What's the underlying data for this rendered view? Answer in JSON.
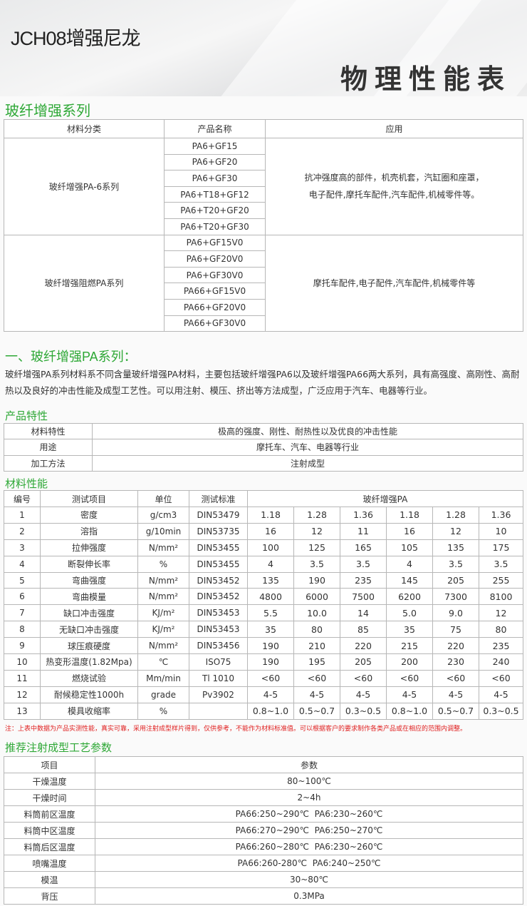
{
  "header": {
    "title": "JCH08增强尼龙",
    "banner_text": "物理性能表"
  },
  "series": {
    "heading": "玻纤增强系列",
    "columns": [
      "材料分类",
      "产品名称",
      "应用"
    ],
    "groups": [
      {
        "category": "玻纤增强PA-6系列",
        "products": [
          "PA6+GF15",
          "PA6+GF20",
          "PA6+GF30",
          "PA6+T18+GF12",
          "PA6+T20+GF20",
          "PA6+T20+GF30"
        ],
        "application_lines": [
          "抗冲强度高的部件，机壳机套，汽缸圈和座罩，",
          "电子配件,摩托车配件,汽车配件,机械零件等。"
        ]
      },
      {
        "category": "玻纤增强阻燃PA系列",
        "products": [
          "PA6+GF15V0",
          "PA6+GF20V0",
          "PA6+GF30V0",
          "PA66+GF15V0",
          "PA66+GF20V0",
          "PA66+GF30V0"
        ],
        "application_lines": [
          "摩托车配件,电子配件,汽车配件,机械零件等"
        ]
      }
    ]
  },
  "intro": {
    "heading": "一、玻纤增强PA系列：",
    "text": "玻纤增强PA系列材料系不同含量玻纤增强PA材料，主要包括玻纤增强PA6以及玻纤增强PA66两大系列，具有高强度、高刚性、高耐热以及良好的冲击性能及成型工艺性。可以用注射、模压、挤出等方法成型，广泛应用于汽车、电器等行业。"
  },
  "features": {
    "heading": "产品特性",
    "rows": [
      [
        "材料特性",
        "极高的强度、刚性、耐热性以及优良的冲击性能"
      ],
      [
        "用途",
        "摩托车、汽车、电器等行业"
      ],
      [
        "加工方法",
        "注射成型"
      ]
    ]
  },
  "properties": {
    "heading": "材料性能",
    "columns": [
      "编号",
      "测试项目",
      "单位",
      "测试标准",
      "玻纤增强PA"
    ],
    "rows": [
      [
        "1",
        "密度",
        "g/cm3",
        "DIN53479",
        "1.18",
        "1.28",
        "1.36",
        "1.18",
        "1.28",
        "1.36"
      ],
      [
        "2",
        "溶指",
        "g/10min",
        "DIN53735",
        "16",
        "12",
        "11",
        "16",
        "12",
        "10"
      ],
      [
        "3",
        "拉伸强度",
        "N/mm²",
        "DIN53455",
        "100",
        "125",
        "165",
        "105",
        "135",
        "175"
      ],
      [
        "4",
        "断裂伸长率",
        "%",
        "DIN53455",
        "4",
        "3.5",
        "3.5",
        "4",
        "3.5",
        "3.5"
      ],
      [
        "5",
        "弯曲强度",
        "N/mm²",
        "DIN53452",
        "135",
        "190",
        "235",
        "145",
        "205",
        "255"
      ],
      [
        "6",
        "弯曲模量",
        "N/mm²",
        "DIN53452",
        "4800",
        "6000",
        "7500",
        "6200",
        "7300",
        "8100"
      ],
      [
        "7",
        "缺口冲击强度",
        "KJ/m²",
        "DIN53453",
        "5.5",
        "10.0",
        "14",
        "5.0",
        "9.0",
        "12"
      ],
      [
        "8",
        "无缺口冲击强度",
        "KJ/m²",
        "DIN53453",
        "35",
        "80",
        "85",
        "35",
        "75",
        "80"
      ],
      [
        "9",
        "球压痕硬度",
        "N/mm²",
        "DIN53456",
        "190",
        "210",
        "220",
        "215",
        "220",
        "235"
      ],
      [
        "10",
        "热变形温度(1.82Mpa)",
        "℃",
        "ISO75",
        "190",
        "195",
        "205",
        "200",
        "230",
        "240"
      ],
      [
        "11",
        "燃烧试验",
        "Mm/min",
        "Tl 1010",
        "<60",
        "<60",
        "<60",
        "<60",
        "<60",
        "<60"
      ],
      [
        "12",
        "耐候稳定性1000h",
        "grade",
        "Pv3902",
        "4-5",
        "4-5",
        "4-5",
        "4-5",
        "4-5",
        "4-5"
      ],
      [
        "13",
        "模具收缩率",
        "%",
        "",
        "0.8~1.0",
        "0.5~0.7",
        "0.3~0.5",
        "0.8~1.0",
        "0.5~0.7",
        "0.3~0.5"
      ]
    ],
    "note": "注：上表中数据为产品实测性能，真实可靠，采用注射成型样片得到，仅供参考，不能作为材料标准值。可以根据客户的要求制作各类产品或在相应的范围内调整。"
  },
  "process": {
    "heading": "推荐注射成型工艺参数",
    "columns": [
      "项目",
      "参数"
    ],
    "rows": [
      [
        "干燥温度",
        "80~100℃"
      ],
      [
        "干燥时间",
        "2~4h"
      ],
      [
        "料筒前区温度",
        "PA66:250~290℃  PA6:230~260℃"
      ],
      [
        "料筒中区温度",
        "PA66:270~290℃  PA6:250~270℃"
      ],
      [
        "料筒后区温度",
        "PA66:260~280℃  PA6:230~260℃"
      ],
      [
        "喷嘴温度",
        "PA66:260-280℃  PA6:240~250℃"
      ],
      [
        "模温",
        "30~80℃"
      ],
      [
        "背压",
        "0.3MPa"
      ]
    ]
  },
  "colors": {
    "heading_green": "#2ea836",
    "note_red": "#e02020",
    "border": "#b7b7b7"
  }
}
